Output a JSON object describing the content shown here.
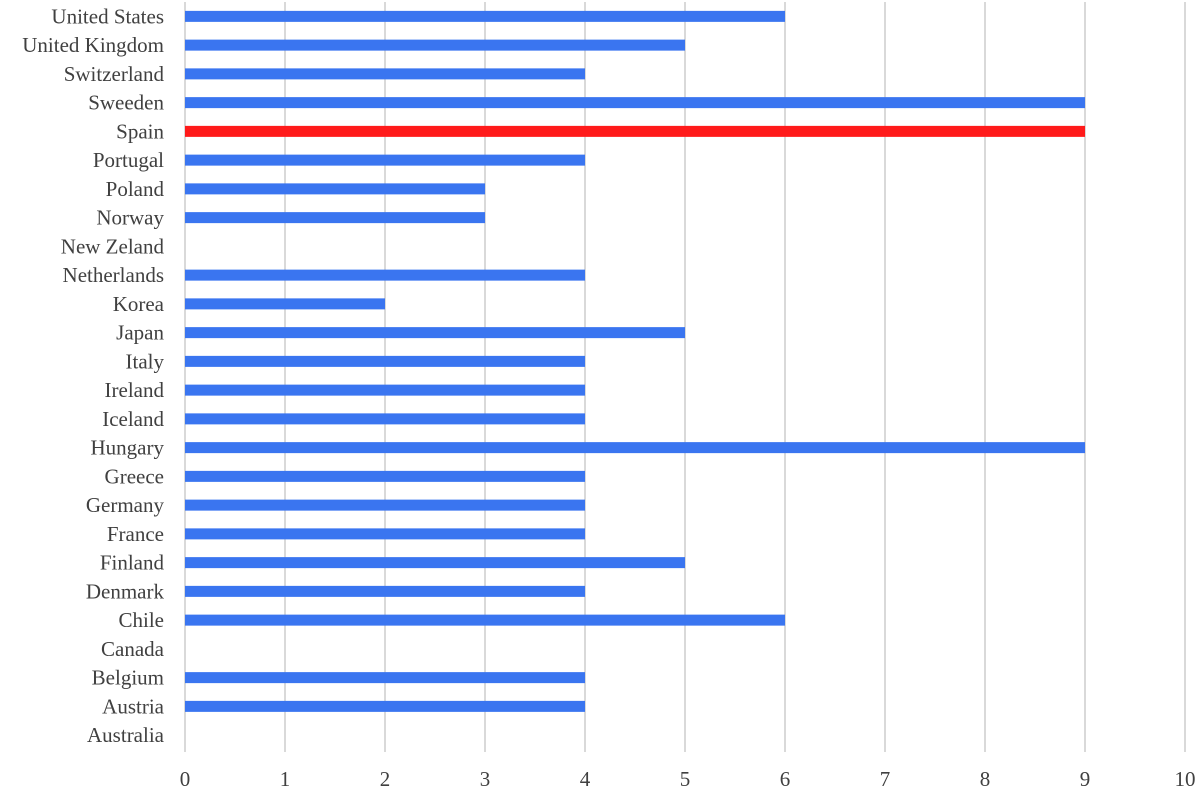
{
  "chart_data": {
    "type": "bar",
    "orientation": "horizontal",
    "title": "",
    "xlabel": "",
    "ylabel": "",
    "xlim": [
      0,
      10
    ],
    "x_ticks": [
      "0",
      "1",
      "2",
      "3",
      "4",
      "5",
      "6",
      "7",
      "8",
      "9",
      "10"
    ],
    "grid": "vertical",
    "legend": "none",
    "categories": [
      "United States",
      "United Kingdom",
      "Switzerland",
      "Sweeden",
      "Spain",
      "Portugal",
      "Poland",
      "Norway",
      "New Zeland",
      "Netherlands",
      "Korea",
      "Japan",
      "Italy",
      "Ireland",
      "Iceland",
      "Hungary",
      "Greece",
      "Germany",
      "France",
      "Finland",
      "Denmark",
      "Chile",
      "Canada",
      "Belgium",
      "Austria",
      "Australia"
    ],
    "values": [
      6,
      5,
      4,
      9,
      9,
      4,
      3,
      3,
      0,
      4,
      2,
      5,
      4,
      4,
      4,
      9,
      4,
      4,
      4,
      5,
      4,
      6,
      0,
      4,
      4,
      0
    ],
    "colors": {
      "default": "#3a75f0",
      "highlight": "#ff1a1a",
      "grid": "#d9d9d9",
      "text": "#404040"
    },
    "highlight_category": "Spain"
  }
}
